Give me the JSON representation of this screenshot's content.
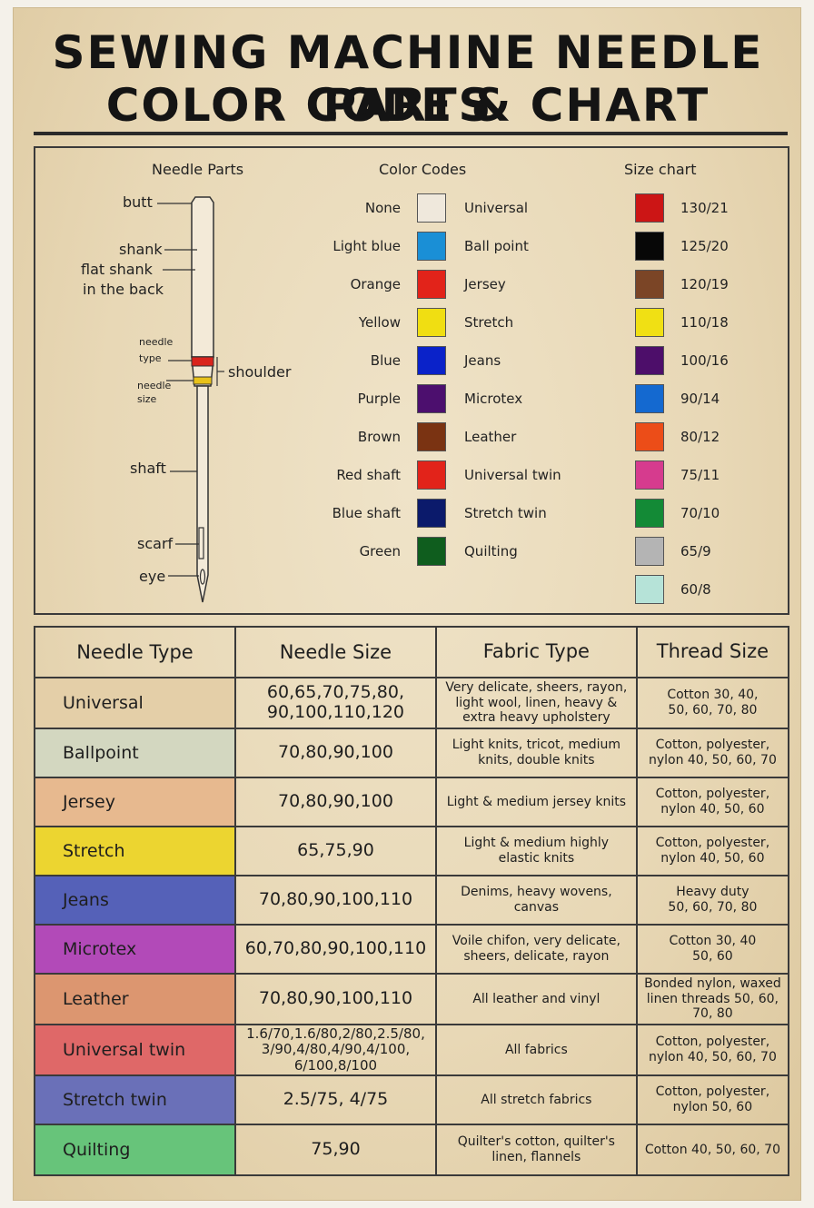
{
  "title": {
    "line1": "SEWING MACHINE NEEDLE PARTS",
    "line2": "COLOR CODE & CHART"
  },
  "needle_parts": {
    "heading": "Needle Parts",
    "labels": {
      "butt": "butt",
      "shank": "shank",
      "flat_shank": "flat shank",
      "in_the_back": "in the back",
      "needle_type_1": "needle",
      "needle_type_2": "type",
      "shoulder": "shoulder",
      "needle_size_1": "needle",
      "needle_size_2": "size",
      "shaft": "shaft",
      "scarf": "scarf",
      "eye": "eye"
    },
    "band_colors": {
      "type": "#d9241c",
      "size": "#e8c21a"
    }
  },
  "color_codes": {
    "heading": "Color Codes",
    "items": [
      {
        "name": "None",
        "color": "#efe8dc",
        "type": "Universal"
      },
      {
        "name": "Light blue",
        "color": "#1a8fd6",
        "type": "Ball point"
      },
      {
        "name": "Orange",
        "color": "#e2231a",
        "type": "Jersey"
      },
      {
        "name": "Yellow",
        "color": "#f0de12",
        "type": "Stretch"
      },
      {
        "name": "Blue",
        "color": "#0a22c9",
        "type": "Jeans"
      },
      {
        "name": "Purple",
        "color": "#4c0f6e",
        "type": "Microtex"
      },
      {
        "name": "Brown",
        "color": "#7a3312",
        "type": "Leather"
      },
      {
        "name": "Red shaft",
        "color": "#e2231a",
        "type": "Universal twin"
      },
      {
        "name": "Blue shaft",
        "color": "#0b1a6b",
        "type": "Stretch twin"
      },
      {
        "name": "Green",
        "color": "#0f5d1e",
        "type": "Quilting"
      }
    ]
  },
  "size_chart": {
    "heading": "Size chart",
    "items": [
      {
        "size": "130/21",
        "color": "#cc1515"
      },
      {
        "size": "125/20",
        "color": "#070707"
      },
      {
        "size": "120/19",
        "color": "#7b4526"
      },
      {
        "size": "110/18",
        "color": "#f0e014"
      },
      {
        "size": "100/16",
        "color": "#4d0e6a"
      },
      {
        "size": "90/14",
        "color": "#1469d0"
      },
      {
        "size": "80/12",
        "color": "#ec4d18"
      },
      {
        "size": "75/11",
        "color": "#d63b8e"
      },
      {
        "size": "70/10",
        "color": "#138a36"
      },
      {
        "size": "65/9",
        "color": "#b4b4b4"
      },
      {
        "size": "60/8",
        "color": "#b6e3d8"
      }
    ]
  },
  "table": {
    "headers": [
      "Needle Type",
      "Needle Size",
      "Fabric Type",
      "Thread Size"
    ],
    "rows": [
      {
        "type": "Universal",
        "color": "#e4cfa8",
        "size": "60,65,70,75,80,\n90,100,110,120",
        "fabric": "Very delicate, sheers, rayon,\nlight wool, linen, heavy &\nextra heavy upholstery",
        "thread": "Cotton 30, 40,\n50, 60, 70, 80"
      },
      {
        "type": "Ballpoint",
        "color": "#d3d7c0",
        "size": "70,80,90,100",
        "fabric": "Light knits, tricot, medium\nknits, double knits",
        "thread": "Cotton, polyester,\nnylon 40, 50, 60, 70"
      },
      {
        "type": "Jersey",
        "color": "#e7b98f",
        "size": "70,80,90,100",
        "fabric": "Light & medium jersey knits",
        "thread": "Cotton, polyester,\nnylon 40, 50, 60"
      },
      {
        "type": "Stretch",
        "color": "#ecd530",
        "size": "65,75,90",
        "fabric": "Light & medium highly\nelastic knits",
        "thread": "Cotton, polyester,\nnylon 40, 50, 60"
      },
      {
        "type": "Jeans",
        "color": "#5561b8",
        "size": "70,80,90,100,110",
        "fabric": "Denims, heavy wovens,\ncanvas",
        "thread": "Heavy duty\n50, 60, 70, 80"
      },
      {
        "type": "Microtex",
        "color": "#b24ab8",
        "size": "60,70,80,90,100,110",
        "fabric": "Voile chifon, very delicate,\nsheers, delicate, rayon",
        "thread": "Cotton 30, 40\n50, 60"
      },
      {
        "type": "Leather",
        "color": "#dc9670",
        "size": "70,80,90,100,110",
        "fabric": "All leather and vinyl",
        "thread": "Bonded nylon, waxed\nlinen threads 50, 60,\n70, 80"
      },
      {
        "type": "Universal twin",
        "color": "#df6868",
        "size": "1.6/70,1.6/80,2/80,2.5/80,\n3/90,4/80,4/90,4/100,\n6/100,8/100",
        "fabric": "All fabrics",
        "thread": "Cotton, polyester,\nnylon 40, 50, 60, 70"
      },
      {
        "type": "Stretch twin",
        "color": "#6a70b8",
        "size": "2.5/75, 4/75",
        "fabric": "All stretch fabrics",
        "thread": "Cotton, polyester,\nnylon 50, 60"
      },
      {
        "type": "Quilting",
        "color": "#67c47a",
        "size": "75,90",
        "fabric": "Quilter's cotton, quilter's\nlinen, flannels",
        "thread": "Cotton 40, 50, 60, 70"
      }
    ]
  }
}
